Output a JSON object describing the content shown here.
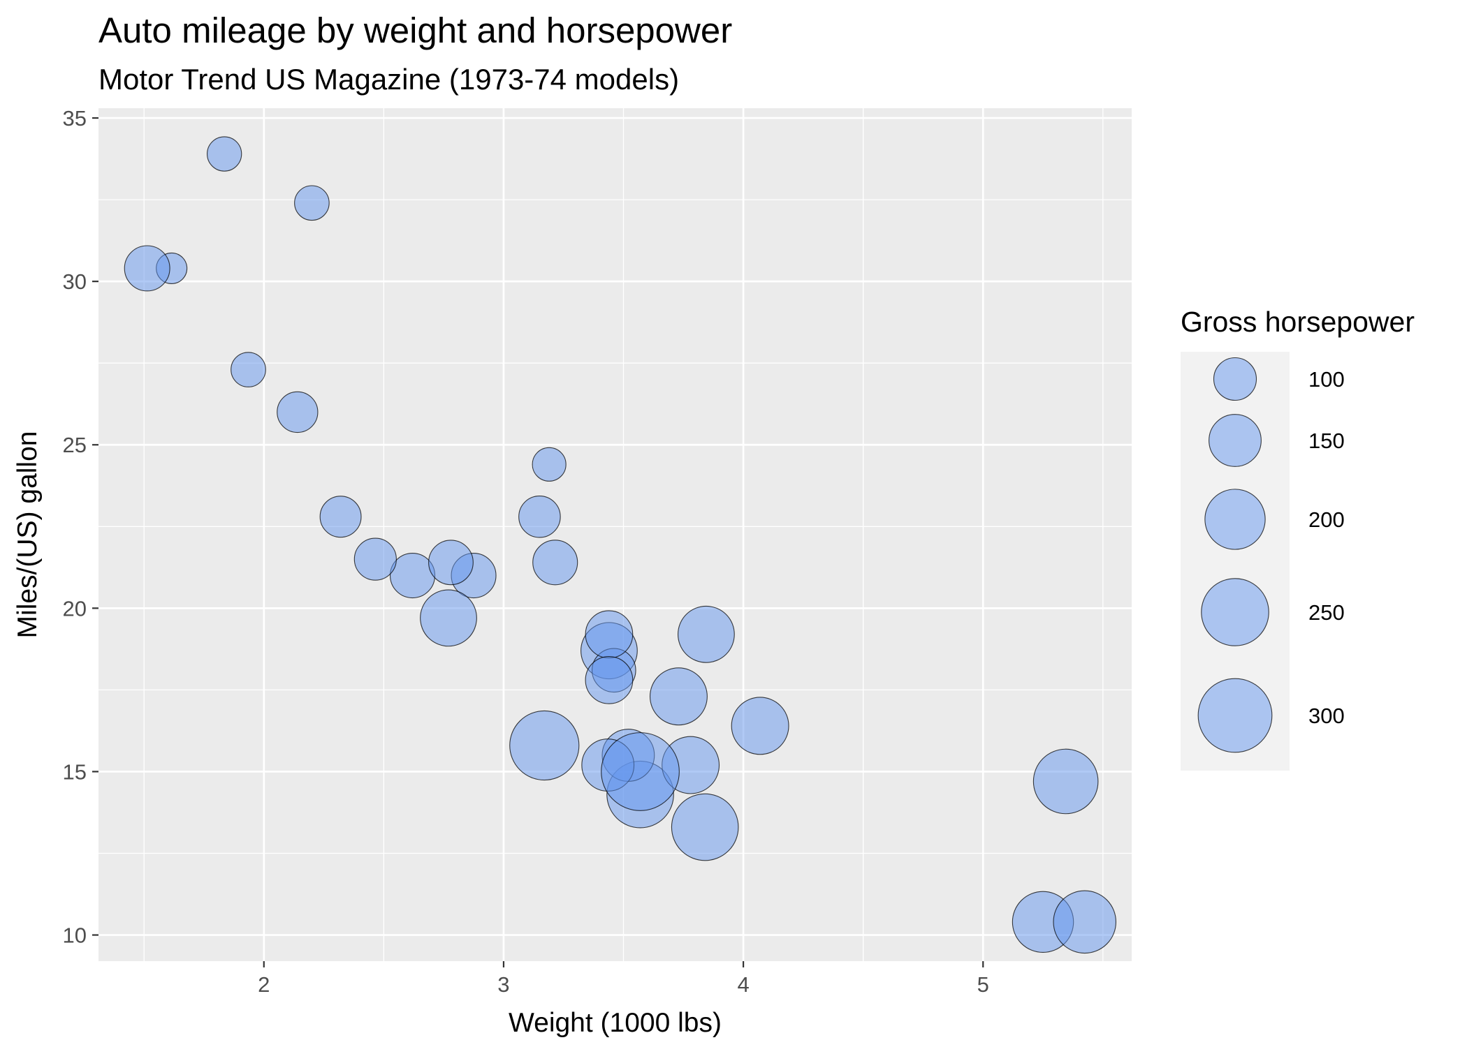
{
  "chart_data": {
    "type": "scatter",
    "title": "Auto mileage by weight and horsepower",
    "subtitle": "Motor Trend US Magazine (1973-74 models)",
    "xlabel": "Weight (1000 lbs)",
    "ylabel": "Miles/(US) gallon",
    "xlim": [
      1.31,
      5.62
    ],
    "ylim": [
      9.2,
      35.3
    ],
    "x_ticks": [
      2,
      3,
      4,
      5
    ],
    "y_ticks": [
      10,
      15,
      20,
      25,
      30,
      35
    ],
    "grid": true,
    "size_variable": "hp",
    "legend": {
      "title": "Gross horsepower",
      "position": "right",
      "values": [
        100,
        150,
        200,
        250,
        300
      ]
    },
    "colors": {
      "panel": "#EBEBEB",
      "grid": "#FFFFFF",
      "point_fill": "#6495ED",
      "point_fill_opacity": 0.5,
      "point_stroke": "#000000",
      "legend_key_bg": "#F2F2F2"
    },
    "points": [
      {
        "x": 2.62,
        "y": 21.0,
        "hp": 110
      },
      {
        "x": 2.875,
        "y": 21.0,
        "hp": 110
      },
      {
        "x": 2.32,
        "y": 22.8,
        "hp": 93
      },
      {
        "x": 3.215,
        "y": 21.4,
        "hp": 110
      },
      {
        "x": 3.44,
        "y": 18.7,
        "hp": 175
      },
      {
        "x": 3.46,
        "y": 18.1,
        "hp": 105
      },
      {
        "x": 3.57,
        "y": 14.3,
        "hp": 245
      },
      {
        "x": 3.19,
        "y": 24.4,
        "hp": 62
      },
      {
        "x": 3.15,
        "y": 22.8,
        "hp": 95
      },
      {
        "x": 3.44,
        "y": 19.2,
        "hp": 123
      },
      {
        "x": 3.44,
        "y": 17.8,
        "hp": 123
      },
      {
        "x": 4.07,
        "y": 16.4,
        "hp": 180
      },
      {
        "x": 3.73,
        "y": 17.3,
        "hp": 180
      },
      {
        "x": 3.78,
        "y": 15.2,
        "hp": 180
      },
      {
        "x": 5.25,
        "y": 10.4,
        "hp": 205
      },
      {
        "x": 5.424,
        "y": 10.4,
        "hp": 215
      },
      {
        "x": 5.345,
        "y": 14.7,
        "hp": 230
      },
      {
        "x": 2.2,
        "y": 32.4,
        "hp": 66
      },
      {
        "x": 1.615,
        "y": 30.4,
        "hp": 52
      },
      {
        "x": 1.835,
        "y": 33.9,
        "hp": 65
      },
      {
        "x": 2.465,
        "y": 21.5,
        "hp": 97
      },
      {
        "x": 3.52,
        "y": 15.5,
        "hp": 150
      },
      {
        "x": 3.435,
        "y": 15.2,
        "hp": 150
      },
      {
        "x": 3.84,
        "y": 13.3,
        "hp": 245
      },
      {
        "x": 3.845,
        "y": 19.2,
        "hp": 175
      },
      {
        "x": 1.935,
        "y": 27.3,
        "hp": 66
      },
      {
        "x": 2.14,
        "y": 26.0,
        "hp": 91
      },
      {
        "x": 1.513,
        "y": 30.4,
        "hp": 113
      },
      {
        "x": 3.17,
        "y": 15.8,
        "hp": 264
      },
      {
        "x": 2.77,
        "y": 19.7,
        "hp": 175
      },
      {
        "x": 3.57,
        "y": 15.0,
        "hp": 335
      },
      {
        "x": 2.78,
        "y": 21.4,
        "hp": 109
      }
    ]
  }
}
